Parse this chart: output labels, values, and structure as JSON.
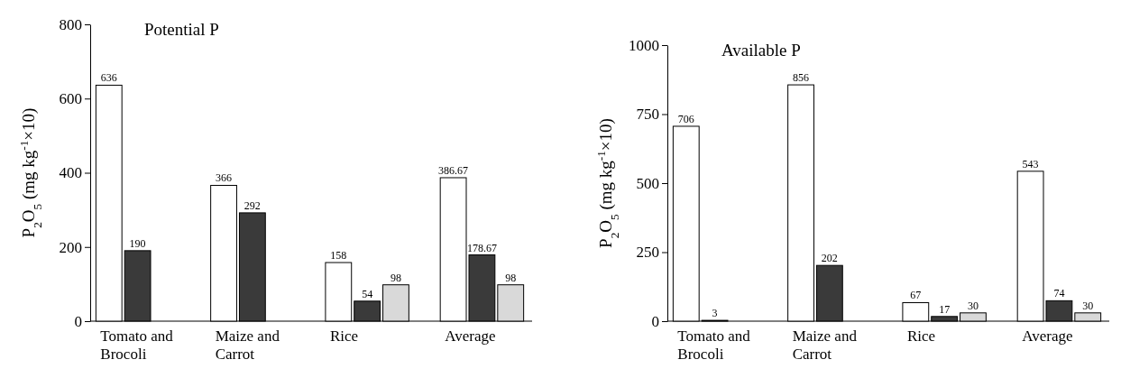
{
  "chart_data": [
    {
      "type": "bar",
      "title": "Potential P",
      "ylabel": "P$_{2}$O$_{5}$ (mg kg$^{-1}$×10)",
      "categories": [
        "Tomato and Brocoli",
        "Maize and Carrot",
        "Rice",
        "Average"
      ],
      "ylim": [
        0,
        800
      ],
      "yticks": [
        0,
        200,
        400,
        600,
        800
      ],
      "data_labels": true,
      "series": [
        {
          "color": "#ffffff",
          "values": [
            636,
            366,
            158,
            386.67
          ]
        },
        {
          "color": "#3a3a3a",
          "values": [
            190,
            292,
            54,
            178.67
          ]
        },
        {
          "color": "#d9d9d9",
          "values": [
            null,
            null,
            98,
            98
          ]
        }
      ]
    },
    {
      "type": "bar",
      "title": "Available P",
      "ylabel": "P$_{2}$O$_{5}$ (mg kg$^{-1}$×10)",
      "categories": [
        "Tomato and Brocoli",
        "Maize and Carrot",
        "Rice",
        "Average"
      ],
      "ylim": [
        0,
        1000
      ],
      "yticks": [
        0,
        250,
        500,
        750,
        1000
      ],
      "data_labels": true,
      "series": [
        {
          "color": "#ffffff",
          "values": [
            706,
            856,
            67,
            543
          ]
        },
        {
          "color": "#3a3a3a",
          "values": [
            3,
            202,
            17,
            74
          ]
        },
        {
          "color": "#d9d9d9",
          "values": [
            null,
            null,
            30,
            30
          ]
        }
      ]
    }
  ]
}
